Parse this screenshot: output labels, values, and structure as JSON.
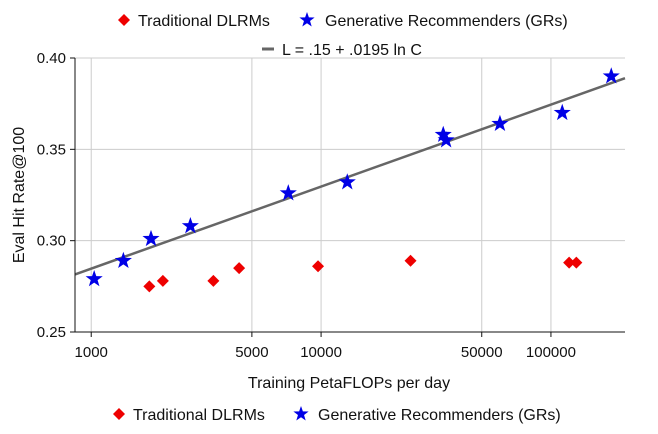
{
  "chart_data": {
    "type": "scatter",
    "xlabel": "Training PetaFLOPs per day",
    "ylabel": "Eval Hit Rate@100",
    "xscale": "log",
    "xlim": [
      850,
      210000
    ],
    "ylim": [
      0.25,
      0.4
    ],
    "grid": true,
    "x_ticks": [
      {
        "value": 1000,
        "label": "1000"
      },
      {
        "value": 5000,
        "label": "5000"
      },
      {
        "value": 10000,
        "label": "10000"
      },
      {
        "value": 50000,
        "label": "50000"
      },
      {
        "value": 100000,
        "label": "100000"
      }
    ],
    "y_ticks": [
      {
        "value": 0.25,
        "label": "0.25"
      },
      {
        "value": 0.3,
        "label": "0.30"
      },
      {
        "value": 0.35,
        "label": "0.35"
      },
      {
        "value": 0.4,
        "label": "0.40"
      }
    ],
    "series": [
      {
        "name": "Traditional DLRMs",
        "marker": "diamond",
        "color": "#ee0000",
        "points": [
          {
            "x": 1790,
            "y": 0.275
          },
          {
            "x": 2050,
            "y": 0.278
          },
          {
            "x": 3400,
            "y": 0.278
          },
          {
            "x": 4400,
            "y": 0.285
          },
          {
            "x": 9700,
            "y": 0.286
          },
          {
            "x": 24500,
            "y": 0.289
          },
          {
            "x": 120000,
            "y": 0.288
          },
          {
            "x": 129000,
            "y": 0.288
          }
        ]
      },
      {
        "name": "Generative Recommenders (GRs)",
        "marker": "star",
        "color": "#0000e6",
        "points": [
          {
            "x": 1030,
            "y": 0.279
          },
          {
            "x": 1380,
            "y": 0.289
          },
          {
            "x": 1820,
            "y": 0.301
          },
          {
            "x": 2700,
            "y": 0.308
          },
          {
            "x": 7200,
            "y": 0.326
          },
          {
            "x": 13000,
            "y": 0.332
          },
          {
            "x": 34000,
            "y": 0.358
          },
          {
            "x": 35000,
            "y": 0.355
          },
          {
            "x": 60000,
            "y": 0.364
          },
          {
            "x": 112000,
            "y": 0.37
          },
          {
            "x": 183000,
            "y": 0.39
          }
        ]
      }
    ],
    "fit_line": {
      "name": "L = .15 + .0195 ln C",
      "color": "#666666",
      "intercept": 0.15,
      "slope": 0.0195
    },
    "legend_top": [
      "Traditional DLRMs",
      "Generative Recommenders (GRs)"
    ],
    "legend_bottom": [
      "Traditional DLRMs",
      "Generative Recommenders (GRs)"
    ]
  }
}
